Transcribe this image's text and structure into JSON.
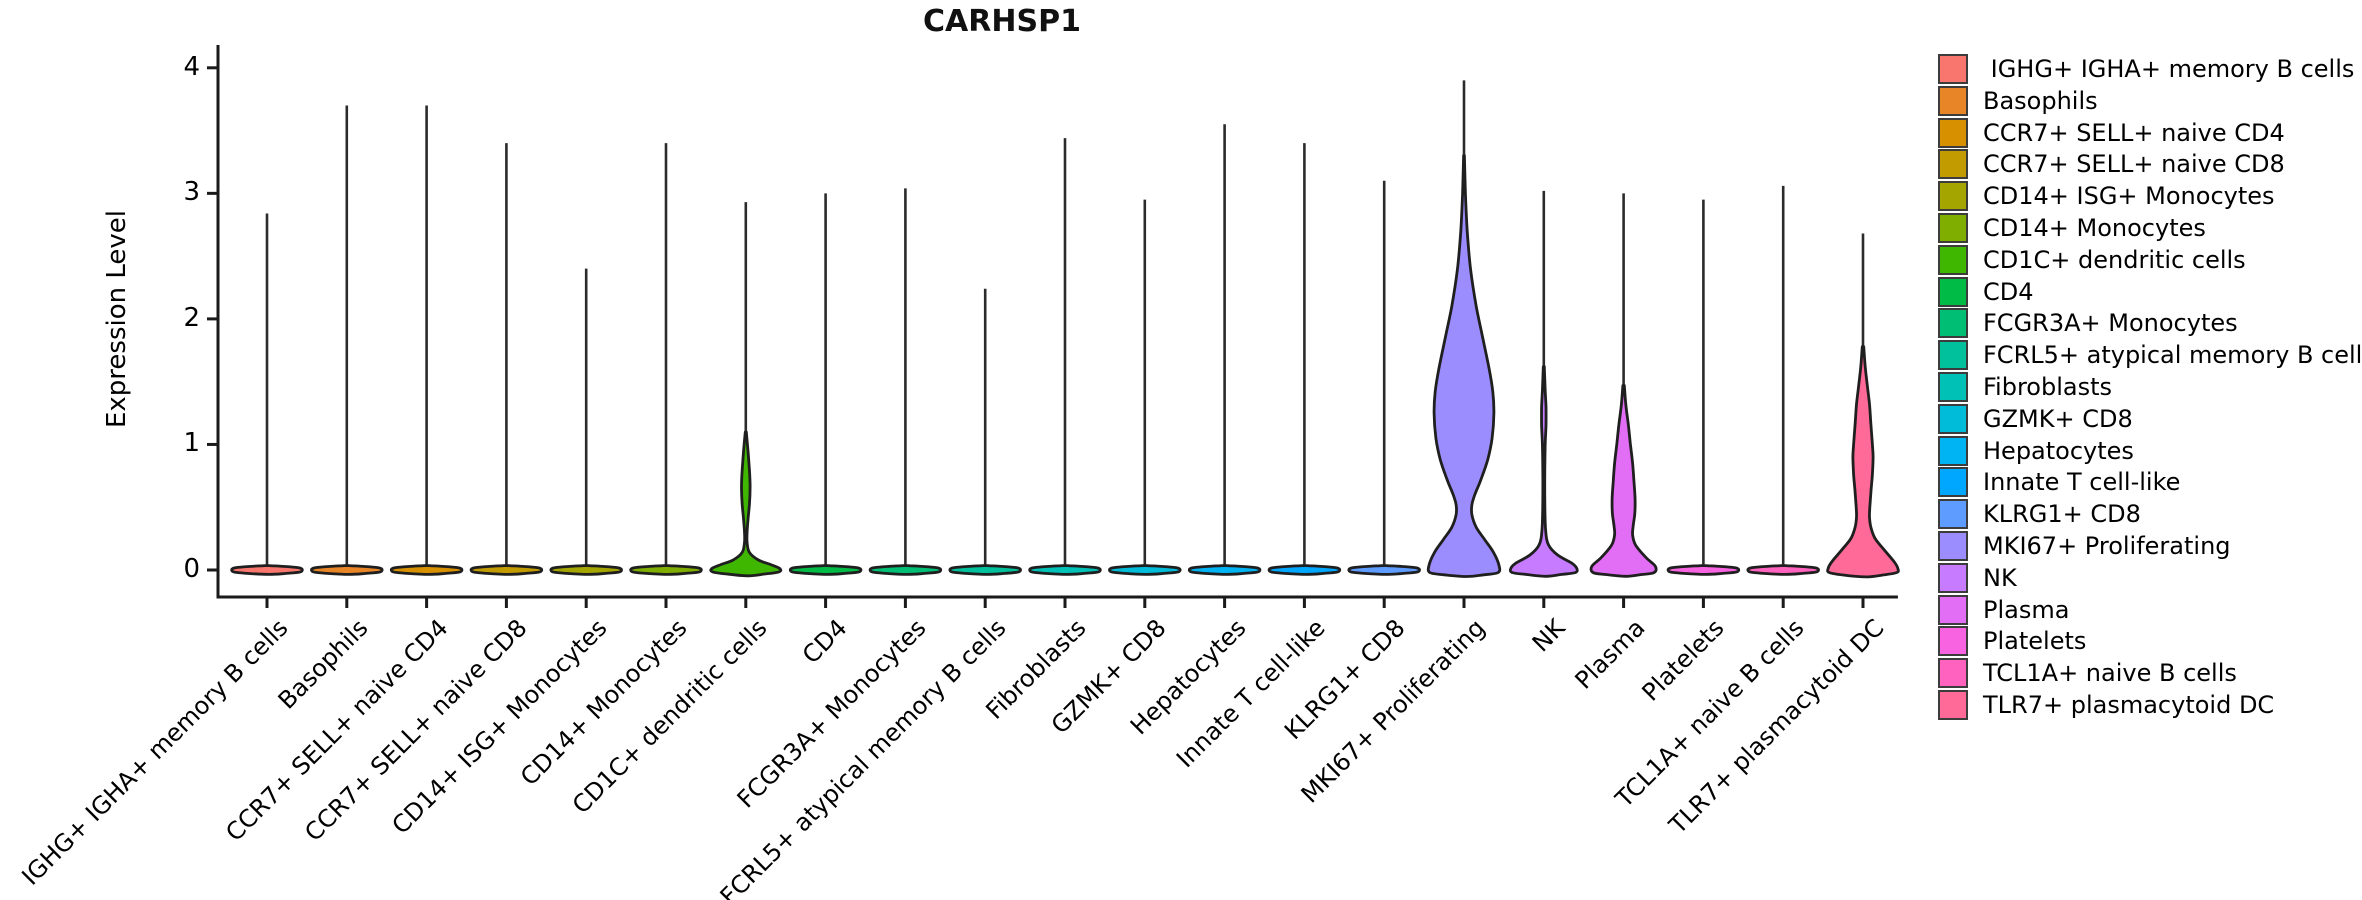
{
  "chart_data": {
    "type": "violin",
    "title": "CARHSP1",
    "ylabel": "Expression Level",
    "xlabel": "",
    "ylim": [
      0,
      4
    ],
    "y_ticks": [
      "0",
      "1",
      "2",
      "3",
      "4"
    ],
    "grid": false,
    "legend_position": "right",
    "categories": [
      "IGHG+ IGHA+ memory B cells",
      "Basophils",
      "CCR7+ SELL+ naive CD4",
      "CCR7+ SELL+ naive CD8",
      "CD14+ ISG+ Monocytes",
      "CD14+ Monocytes",
      "CD1C+ dendritic cells",
      "CD4",
      "FCGR3A+ Monocytes",
      "FCRL5+ atypical memory B cells",
      "Fibroblasts",
      "GZMK+ CD8",
      "Hepatocytes",
      "Innate T cell-like",
      "KLRG1+ CD8",
      "MKI67+ Proliferating",
      "NK",
      "Plasma",
      "Platelets",
      "TCL1A+ naive B cells",
      "TLR7+ plasmacytoid DC"
    ],
    "legend_labels": [
      " IGHG+ IGHA+ memory B cells",
      "Basophils",
      "CCR7+ SELL+ naive CD4",
      "CCR7+ SELL+ naive CD8",
      "CD14+ ISG+ Monocytes",
      "CD14+ Monocytes",
      "CD1C+ dendritic cells",
      "CD4",
      "FCGR3A+ Monocytes",
      "FCRL5+ atypical memory B cells",
      "Fibroblasts",
      "GZMK+ CD8",
      "Hepatocytes",
      "Innate T cell-like",
      "KLRG1+ CD8",
      "MKI67+ Proliferating",
      "NK",
      "Plasma",
      "Platelets",
      "TCL1A+ naive B cells",
      "TLR7+ plasmacytoid DC"
    ],
    "colors": [
      "#F8766D",
      "#E88526",
      "#D79000",
      "#C29B00",
      "#A5A500",
      "#7FAD00",
      "#3FB600",
      "#00BB45",
      "#00BF74",
      "#00C19B",
      "#00C1B6",
      "#00BCD8",
      "#00B3F2",
      "#00A7FF",
      "#5E9DFF",
      "#9C8DFF",
      "#C77CFF",
      "#E36EF6",
      "#F763E0",
      "#FF62BF",
      "#FF6A98"
    ],
    "max_expression": [
      2.84,
      3.7,
      3.7,
      3.4,
      2.4,
      3.4,
      2.93,
      3.0,
      3.04,
      2.24,
      3.44,
      2.95,
      3.55,
      3.4,
      3.1,
      3.9,
      3.02,
      3.0,
      2.95,
      3.06,
      2.68
    ],
    "flat_body": [
      [
        0.035,
        0.06
      ],
      [
        0.028,
        0.5
      ],
      [
        0.018,
        0.88
      ],
      [
        0.008,
        0.97
      ],
      [
        -0.008,
        0.97
      ],
      [
        -0.018,
        0.88
      ],
      [
        -0.028,
        0.5
      ],
      [
        -0.035,
        0.06
      ]
    ],
    "bodies": {
      "6": [
        [
          1.1,
          0.015
        ],
        [
          0.95,
          0.06
        ],
        [
          0.8,
          0.1
        ],
        [
          0.66,
          0.12
        ],
        [
          0.52,
          0.1
        ],
        [
          0.4,
          0.06
        ],
        [
          0.3,
          0.035
        ],
        [
          0.22,
          0.035
        ],
        [
          0.14,
          0.1
        ],
        [
          0.08,
          0.35
        ],
        [
          0.04,
          0.72
        ],
        [
          0.01,
          0.95
        ],
        [
          -0.015,
          0.92
        ],
        [
          -0.032,
          0.52
        ],
        [
          -0.046,
          0.07
        ]
      ],
      "15": [
        [
          3.3,
          0.012
        ],
        [
          3.0,
          0.04
        ],
        [
          2.7,
          0.09
        ],
        [
          2.4,
          0.18
        ],
        [
          2.1,
          0.34
        ],
        [
          1.85,
          0.52
        ],
        [
          1.6,
          0.7
        ],
        [
          1.42,
          0.8
        ],
        [
          1.25,
          0.83
        ],
        [
          1.05,
          0.78
        ],
        [
          0.88,
          0.66
        ],
        [
          0.72,
          0.47
        ],
        [
          0.6,
          0.3
        ],
        [
          0.52,
          0.22
        ],
        [
          0.44,
          0.22
        ],
        [
          0.34,
          0.34
        ],
        [
          0.24,
          0.58
        ],
        [
          0.14,
          0.82
        ],
        [
          0.04,
          0.97
        ],
        [
          -0.02,
          0.95
        ],
        [
          -0.038,
          0.55
        ],
        [
          -0.052,
          0.08
        ]
      ],
      "16": [
        [
          1.62,
          0.015
        ],
        [
          1.45,
          0.035
        ],
        [
          1.3,
          0.06
        ],
        [
          1.15,
          0.06
        ],
        [
          1.0,
          0.04
        ],
        [
          0.8,
          0.028
        ],
        [
          0.55,
          0.028
        ],
        [
          0.32,
          0.05
        ],
        [
          0.2,
          0.13
        ],
        [
          0.12,
          0.38
        ],
        [
          0.05,
          0.8
        ],
        [
          0.01,
          0.92
        ],
        [
          -0.02,
          0.88
        ],
        [
          -0.035,
          0.5
        ],
        [
          -0.05,
          0.07
        ]
      ],
      "17": [
        [
          1.47,
          0.02
        ],
        [
          1.32,
          0.06
        ],
        [
          1.16,
          0.13
        ],
        [
          1.0,
          0.19
        ],
        [
          0.85,
          0.25
        ],
        [
          0.7,
          0.29
        ],
        [
          0.56,
          0.32
        ],
        [
          0.45,
          0.31
        ],
        [
          0.36,
          0.27
        ],
        [
          0.28,
          0.25
        ],
        [
          0.2,
          0.33
        ],
        [
          0.1,
          0.62
        ],
        [
          0.03,
          0.88
        ],
        [
          -0.02,
          0.85
        ],
        [
          -0.036,
          0.5
        ],
        [
          -0.05,
          0.07
        ]
      ],
      "20": [
        [
          1.78,
          0.02
        ],
        [
          1.62,
          0.06
        ],
        [
          1.47,
          0.12
        ],
        [
          1.32,
          0.18
        ],
        [
          1.16,
          0.22
        ],
        [
          1.0,
          0.26
        ],
        [
          0.9,
          0.28
        ],
        [
          0.76,
          0.26
        ],
        [
          0.62,
          0.22
        ],
        [
          0.5,
          0.19
        ],
        [
          0.42,
          0.18
        ],
        [
          0.34,
          0.22
        ],
        [
          0.25,
          0.34
        ],
        [
          0.15,
          0.62
        ],
        [
          0.06,
          0.88
        ],
        [
          0.01,
          0.97
        ],
        [
          -0.02,
          0.94
        ],
        [
          -0.04,
          0.55
        ],
        [
          -0.055,
          0.08
        ]
      ]
    }
  }
}
